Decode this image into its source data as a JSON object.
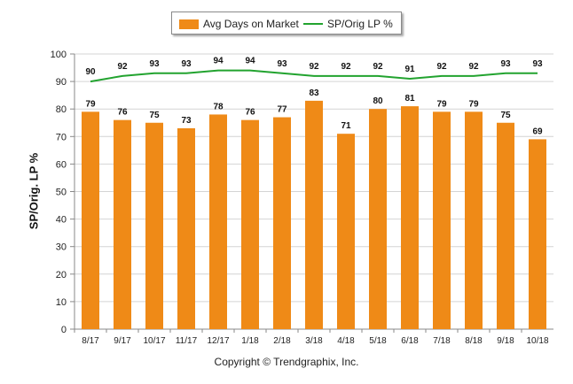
{
  "chart_data": {
    "type": "bar",
    "categories": [
      "8/17",
      "9/17",
      "10/17",
      "11/17",
      "12/17",
      "1/18",
      "2/18",
      "3/18",
      "4/18",
      "5/18",
      "6/18",
      "7/18",
      "8/18",
      "9/18",
      "10/18"
    ],
    "series": [
      {
        "name": "Avg Days on Market",
        "type": "bar",
        "color": "#ef8a17",
        "values": [
          79,
          76,
          75,
          73,
          78,
          76,
          77,
          83,
          71,
          80,
          81,
          79,
          79,
          75,
          69
        ]
      },
      {
        "name": "SP/Orig LP %",
        "type": "line",
        "color": "#22a32f",
        "values": [
          90,
          92,
          93,
          93,
          94,
          94,
          93,
          92,
          92,
          92,
          91,
          92,
          92,
          93,
          93
        ]
      }
    ],
    "ylabel": "SP/Orig. LP %",
    "ylim": [
      0,
      100
    ],
    "yticks": [
      0,
      10,
      20,
      30,
      40,
      50,
      60,
      70,
      80,
      90,
      100
    ],
    "grid": true,
    "legend_position": "top-center"
  },
  "footer": {
    "copyright": "Copyright © Trendgraphix, Inc."
  }
}
